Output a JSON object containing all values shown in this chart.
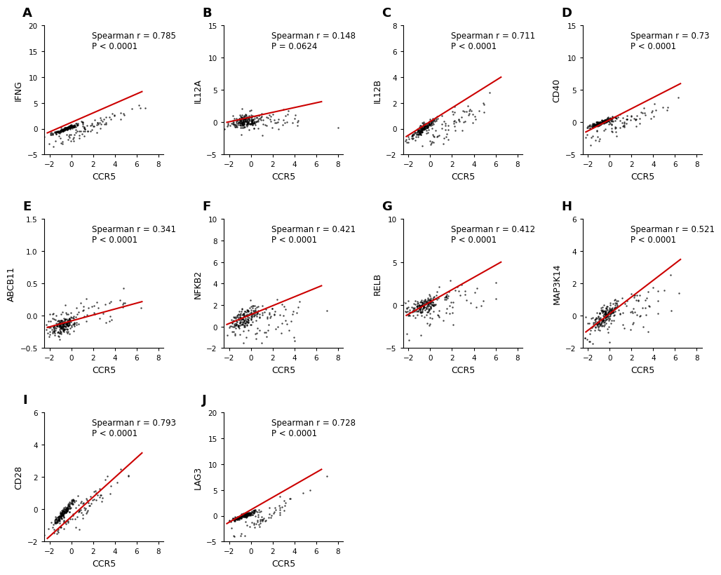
{
  "panels": [
    {
      "label": "A",
      "ylabel": "IFNG",
      "spearman_r": 0.785,
      "p_text": "P < 0.0001",
      "xlim": [
        -2.5,
        8.5
      ],
      "ylim": [
        -5,
        20
      ],
      "yticks": [
        -5,
        0,
        5,
        10,
        15,
        20
      ],
      "xticks": [
        -2,
        0,
        2,
        4,
        6,
        8
      ],
      "line_x": [
        -2.2,
        6.5
      ],
      "line_y": [
        -0.8,
        7.2
      ]
    },
    {
      "label": "B",
      "ylabel": "IL12A",
      "spearman_r": 0.148,
      "p_text": "P = 0.0624",
      "xlim": [
        -2.5,
        8.5
      ],
      "ylim": [
        -5,
        15
      ],
      "yticks": [
        -5,
        0,
        5,
        10,
        15
      ],
      "xticks": [
        -2,
        0,
        2,
        4,
        6,
        8
      ],
      "line_x": [
        -2.2,
        6.5
      ],
      "line_y": [
        0.0,
        3.2
      ]
    },
    {
      "label": "C",
      "ylabel": "IL12B",
      "spearman_r": 0.711,
      "p_text": "P < 0.0001",
      "xlim": [
        -2.5,
        8.5
      ],
      "ylim": [
        -2,
        8
      ],
      "yticks": [
        -2,
        0,
        2,
        4,
        6,
        8
      ],
      "xticks": [
        -2,
        0,
        2,
        4,
        6,
        8
      ],
      "line_x": [
        -2.2,
        6.5
      ],
      "line_y": [
        -0.6,
        4.0
      ]
    },
    {
      "label": "D",
      "ylabel": "CD40",
      "spearman_r": 0.73,
      "p_text": "P < 0.0001",
      "xlim": [
        -2.5,
        8.5
      ],
      "ylim": [
        -5,
        15
      ],
      "yticks": [
        -5,
        0,
        5,
        10,
        15
      ],
      "xticks": [
        -2,
        0,
        2,
        4,
        6,
        8
      ],
      "line_x": [
        -2.2,
        6.5
      ],
      "line_y": [
        -1.5,
        6.0
      ]
    },
    {
      "label": "E",
      "ylabel": "ABCB11",
      "spearman_r": 0.341,
      "p_text": "P < 0.0001",
      "xlim": [
        -2.5,
        8.5
      ],
      "ylim": [
        -0.5,
        1.5
      ],
      "yticks": [
        -0.5,
        0.0,
        0.5,
        1.0,
        1.5
      ],
      "xticks": [
        -2,
        0,
        2,
        4,
        6,
        8
      ],
      "line_x": [
        -2.2,
        6.5
      ],
      "line_y": [
        -0.18,
        0.22
      ]
    },
    {
      "label": "F",
      "ylabel": "NFKB2",
      "spearman_r": 0.421,
      "p_text": "P < 0.0001",
      "xlim": [
        -2.5,
        8.5
      ],
      "ylim": [
        -2,
        10
      ],
      "yticks": [
        -2,
        0,
        2,
        4,
        6,
        8,
        10
      ],
      "xticks": [
        -2,
        0,
        2,
        4,
        6,
        8
      ],
      "line_x": [
        -2.2,
        6.5
      ],
      "line_y": [
        0.2,
        3.8
      ]
    },
    {
      "label": "G",
      "ylabel": "RELB",
      "spearman_r": 0.412,
      "p_text": "P < 0.0001",
      "xlim": [
        -2.5,
        8.5
      ],
      "ylim": [
        -5,
        10
      ],
      "yticks": [
        -5,
        0,
        5,
        10
      ],
      "xticks": [
        -2,
        0,
        2,
        4,
        6,
        8
      ],
      "line_x": [
        -2.2,
        6.5
      ],
      "line_y": [
        -1.2,
        5.0
      ]
    },
    {
      "label": "H",
      "ylabel": "MAP3K14",
      "spearman_r": 0.521,
      "p_text": "P < 0.0001",
      "xlim": [
        -2.5,
        8.5
      ],
      "ylim": [
        -2,
        6
      ],
      "yticks": [
        -2,
        0,
        2,
        4,
        6
      ],
      "xticks": [
        -2,
        0,
        2,
        4,
        6,
        8
      ],
      "line_x": [
        -2.2,
        6.5
      ],
      "line_y": [
        -1.0,
        3.5
      ]
    },
    {
      "label": "I",
      "ylabel": "CD28",
      "spearman_r": 0.793,
      "p_text": "P < 0.0001",
      "xlim": [
        -2.5,
        8.5
      ],
      "ylim": [
        -2,
        6
      ],
      "yticks": [
        -2,
        0,
        2,
        4,
        6
      ],
      "xticks": [
        -2,
        0,
        2,
        4,
        6,
        8
      ],
      "line_x": [
        -2.2,
        6.5
      ],
      "line_y": [
        -1.8,
        3.5
      ]
    },
    {
      "label": "J",
      "ylabel": "LAG3",
      "spearman_r": 0.728,
      "p_text": "P < 0.0001",
      "xlim": [
        -2.5,
        8.5
      ],
      "ylim": [
        -5,
        20
      ],
      "yticks": [
        -5,
        0,
        5,
        10,
        15,
        20
      ],
      "xticks": [
        -2,
        0,
        2,
        4,
        6,
        8
      ],
      "line_x": [
        -2.2,
        6.5
      ],
      "line_y": [
        -1.5,
        9.0
      ]
    }
  ],
  "dot_color": "#000000",
  "line_color": "#cc0000",
  "dot_size": 3,
  "dot_alpha": 0.75,
  "xlabel": "CCR5",
  "label_fontsize": 9,
  "tick_fontsize": 7.5,
  "annot_fontsize": 8.5,
  "panel_label_fontsize": 13,
  "bg_color": "#ffffff"
}
